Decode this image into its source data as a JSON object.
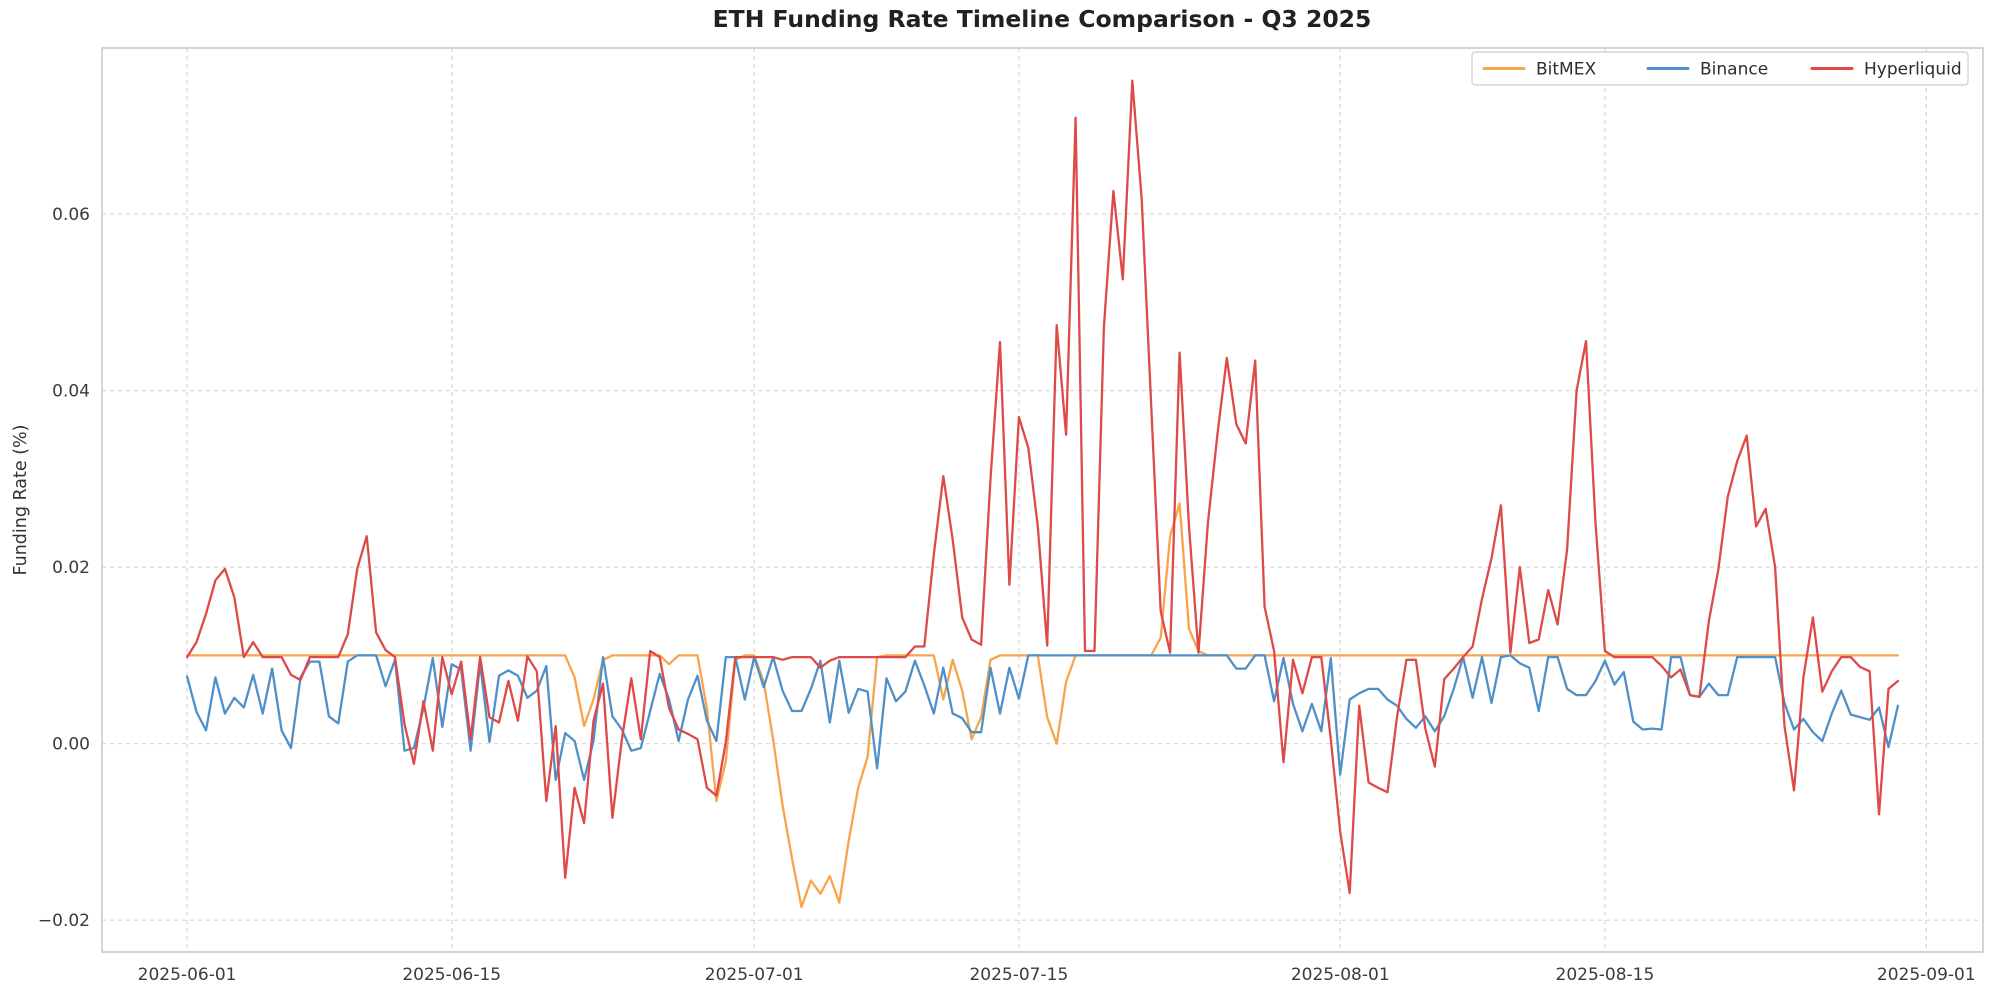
{
  "page": {
    "background": "#ffffff"
  },
  "chart_data": {
    "type": "line",
    "title": "ETH Funding Rate Timeline Comparison - Q3 2025",
    "xlabel": "",
    "ylabel": "Funding Rate (%)",
    "grid": "dashed, both axes, light gray",
    "legend_position": "upper right inside plot, horizontal row",
    "x_start_date": "2025-06-01",
    "sample_interval_hours": 12,
    "xlim_days": [
      -4.5,
      95
    ],
    "ylim": [
      -0.0236,
      0.0788
    ],
    "x_ticks": [
      {
        "day": 0,
        "label": "2025-06-01"
      },
      {
        "day": 14,
        "label": "2025-06-15"
      },
      {
        "day": 30,
        "label": "2025-07-01"
      },
      {
        "day": 44,
        "label": "2025-07-15"
      },
      {
        "day": 61,
        "label": "2025-08-01"
      },
      {
        "day": 75,
        "label": "2025-08-15"
      },
      {
        "day": 92,
        "label": "2025-09-01"
      }
    ],
    "y_ticks": [
      {
        "value": -0.02,
        "label": "−0.02"
      },
      {
        "value": 0.0,
        "label": "0.00"
      },
      {
        "value": 0.02,
        "label": "0.02"
      },
      {
        "value": 0.04,
        "label": "0.04"
      },
      {
        "value": 0.06,
        "label": "0.06"
      }
    ],
    "series": [
      {
        "name": "BitMEX",
        "color": "#f9a44a",
        "step_days": 0.5,
        "values": [
          0.01,
          0.01,
          0.01,
          0.01,
          0.01,
          0.01,
          0.01,
          0.01,
          0.01,
          0.01,
          0.01,
          0.01,
          0.01,
          0.01,
          0.01,
          0.01,
          0.01,
          0.01,
          0.01,
          0.01,
          0.01,
          0.01,
          0.01,
          0.01,
          0.01,
          0.01,
          0.01,
          0.01,
          0.01,
          0.01,
          0.01,
          0.01,
          0.01,
          0.01,
          0.01,
          0.01,
          0.01,
          0.01,
          0.01,
          0.01,
          0.01,
          0.0075,
          0.002,
          0.005,
          0.0095,
          0.01,
          0.01,
          0.01,
          0.01,
          0.01,
          0.01,
          0.009,
          0.01,
          0.01,
          0.01,
          0.004,
          -0.0065,
          -0.002,
          0.0095,
          0.01,
          0.01,
          0.007,
          0.0005,
          -0.007,
          -0.013,
          -0.0185,
          -0.0155,
          -0.017,
          -0.015,
          -0.018,
          -0.011,
          -0.005,
          -0.0015,
          0.0098,
          0.01,
          0.01,
          0.01,
          0.01,
          0.01,
          0.01,
          0.005,
          0.0095,
          0.006,
          0.0005,
          0.003,
          0.0095,
          0.01,
          0.01,
          0.01,
          0.01,
          0.01,
          0.003,
          0.0,
          0.007,
          0.01,
          0.01,
          0.01,
          0.01,
          0.01,
          0.01,
          0.01,
          0.01,
          0.01,
          0.012,
          0.0235,
          0.0272,
          0.013,
          0.0105,
          0.01,
          0.01,
          0.01,
          0.01,
          0.01,
          0.01,
          0.01,
          0.01,
          0.01,
          0.01,
          0.01,
          0.01,
          0.01,
          0.01,
          0.01,
          0.01,
          0.01,
          0.01,
          0.01,
          0.01,
          0.01,
          0.01,
          0.01,
          0.01,
          0.01,
          0.01,
          0.01,
          0.01,
          0.01,
          0.01,
          0.01,
          0.01,
          0.01,
          0.01,
          0.01,
          0.01,
          0.01,
          0.01,
          0.01,
          0.01,
          0.01,
          0.01,
          0.01,
          0.01,
          0.01,
          0.01,
          0.01,
          0.01,
          0.01,
          0.01,
          0.01,
          0.01,
          0.01,
          0.01,
          0.01,
          0.01,
          0.01,
          0.01,
          0.01,
          0.01,
          0.01,
          0.01,
          0.01,
          0.01,
          0.01,
          0.01,
          0.01,
          0.01,
          0.01,
          0.01,
          0.01,
          0.01,
          0.01,
          0.01
        ]
      },
      {
        "name": "Binance",
        "color": "#5090c8",
        "step_days": 0.5,
        "values": [
          0.0076,
          0.0036,
          0.0015,
          0.0075,
          0.0034,
          0.0052,
          0.0041,
          0.0078,
          0.0034,
          0.0085,
          0.0015,
          -0.0005,
          0.0075,
          0.0093,
          0.0093,
          0.0031,
          0.0023,
          0.0093,
          0.01,
          0.01,
          0.01,
          0.0065,
          0.0095,
          -0.0008,
          -0.0005,
          0.004,
          0.0097,
          0.0019,
          0.009,
          0.0084,
          -0.0008,
          0.0091,
          0.0002,
          0.0077,
          0.0083,
          0.0077,
          0.0052,
          0.006,
          0.0088,
          -0.0041,
          0.0012,
          0.0003,
          -0.0041,
          0.0003,
          0.0098,
          0.0031,
          0.0016,
          -0.0008,
          -0.0005,
          0.0037,
          0.0079,
          0.005,
          0.0003,
          0.005,
          0.0077,
          0.0026,
          0.0003,
          0.0098,
          0.0098,
          0.005,
          0.0098,
          0.0064,
          0.0098,
          0.006,
          0.0037,
          0.0037,
          0.0062,
          0.0094,
          0.0024,
          0.0094,
          0.0035,
          0.0062,
          0.0059,
          -0.0028,
          0.0074,
          0.0048,
          0.0059,
          0.0094,
          0.0066,
          0.0034,
          0.0086,
          0.0034,
          0.0029,
          0.0013,
          0.0013,
          0.0086,
          0.0034,
          0.0086,
          0.0051,
          0.01,
          0.01,
          0.01,
          0.01,
          0.01,
          0.01,
          0.01,
          0.01,
          0.01,
          0.01,
          0.01,
          0.01,
          0.01,
          0.01,
          0.01,
          0.01,
          0.01,
          0.01,
          0.01,
          0.01,
          0.01,
          0.01,
          0.0085,
          0.0085,
          0.01,
          0.01,
          0.0048,
          0.0097,
          0.0045,
          0.0014,
          0.0045,
          0.0014,
          0.0097,
          -0.0035,
          0.005,
          0.0057,
          0.0062,
          0.0062,
          0.005,
          0.0043,
          0.0028,
          0.0018,
          0.0031,
          0.0014,
          0.0031,
          0.0062,
          0.0098,
          0.0052,
          0.0098,
          0.0046,
          0.0098,
          0.01,
          0.0091,
          0.0086,
          0.0037,
          0.0098,
          0.0098,
          0.0062,
          0.0055,
          0.0055,
          0.0071,
          0.0094,
          0.0067,
          0.0081,
          0.0025,
          0.0016,
          0.0017,
          0.0016,
          0.0098,
          0.0098,
          0.0055,
          0.0053,
          0.0068,
          0.0055,
          0.0055,
          0.0098,
          0.0098,
          0.0098,
          0.0098,
          0.0098,
          0.0046,
          0.0016,
          0.0028,
          0.0013,
          0.0003,
          0.0034,
          0.006,
          0.0033,
          0.003,
          0.0027,
          0.0041,
          -0.0004,
          0.0043
        ]
      },
      {
        "name": "Hyperliquid",
        "color": "#dd4a48",
        "step_days": 0.5,
        "values": [
          0.0098,
          0.0115,
          0.0147,
          0.0185,
          0.0198,
          0.0166,
          0.0098,
          0.0115,
          0.0098,
          0.0098,
          0.0098,
          0.0078,
          0.0072,
          0.0098,
          0.0098,
          0.0098,
          0.0098,
          0.0124,
          0.0198,
          0.0235,
          0.0126,
          0.0106,
          0.0098,
          0.0022,
          -0.0023,
          0.0048,
          -0.0008,
          0.0098,
          0.0056,
          0.0093,
          0.0005,
          0.0098,
          0.003,
          0.0024,
          0.0071,
          0.0026,
          0.0099,
          0.0082,
          -0.0065,
          0.002,
          -0.0152,
          -0.005,
          -0.009,
          0.0026,
          0.0068,
          -0.0084,
          0.0005,
          0.0074,
          0.0005,
          0.0105,
          0.0098,
          0.004,
          0.0016,
          0.0011,
          0.0005,
          -0.005,
          -0.0059,
          0.0002,
          0.0098,
          0.0098,
          0.0098,
          0.0098,
          0.0098,
          0.0095,
          0.0098,
          0.0098,
          0.0098,
          0.0086,
          0.0094,
          0.0098,
          0.0098,
          0.0098,
          0.0098,
          0.0098,
          0.0098,
          0.0098,
          0.0098,
          0.011,
          0.011,
          0.0214,
          0.0303,
          0.0231,
          0.0143,
          0.0118,
          0.0112,
          0.03,
          0.0455,
          0.018,
          0.037,
          0.0335,
          0.0246,
          0.0111,
          0.0474,
          0.035,
          0.0709,
          0.0105,
          0.0105,
          0.0472,
          0.0626,
          0.0526,
          0.0751,
          0.0617,
          0.0383,
          0.015,
          0.0103,
          0.0443,
          0.0246,
          0.0103,
          0.025,
          0.035,
          0.0437,
          0.0362,
          0.034,
          0.0434,
          0.0155,
          0.0105,
          -0.0021,
          0.0095,
          0.0057,
          0.0098,
          0.0098,
          0.0005,
          -0.01,
          -0.0169,
          0.0043,
          -0.0044,
          -0.005,
          -0.0055,
          0.003,
          0.0095,
          0.0095,
          0.0017,
          -0.0026,
          0.0073,
          0.0085,
          0.0098,
          0.011,
          0.0164,
          0.021,
          0.027,
          0.0103,
          0.02,
          0.0114,
          0.0118,
          0.0174,
          0.0135,
          0.022,
          0.04,
          0.0456,
          0.025,
          0.0105,
          0.0098,
          0.0098,
          0.0098,
          0.0098,
          0.0098,
          0.0088,
          0.0075,
          0.0084,
          0.0055,
          0.0053,
          0.0139,
          0.0197,
          0.028,
          0.032,
          0.0349,
          0.0246,
          0.0266,
          0.02,
          0.002,
          -0.0053,
          0.0075,
          0.0143,
          0.0059,
          0.0082,
          0.0098,
          0.0098,
          0.0087,
          0.0082,
          -0.008,
          0.0062,
          0.0071
        ]
      }
    ]
  }
}
